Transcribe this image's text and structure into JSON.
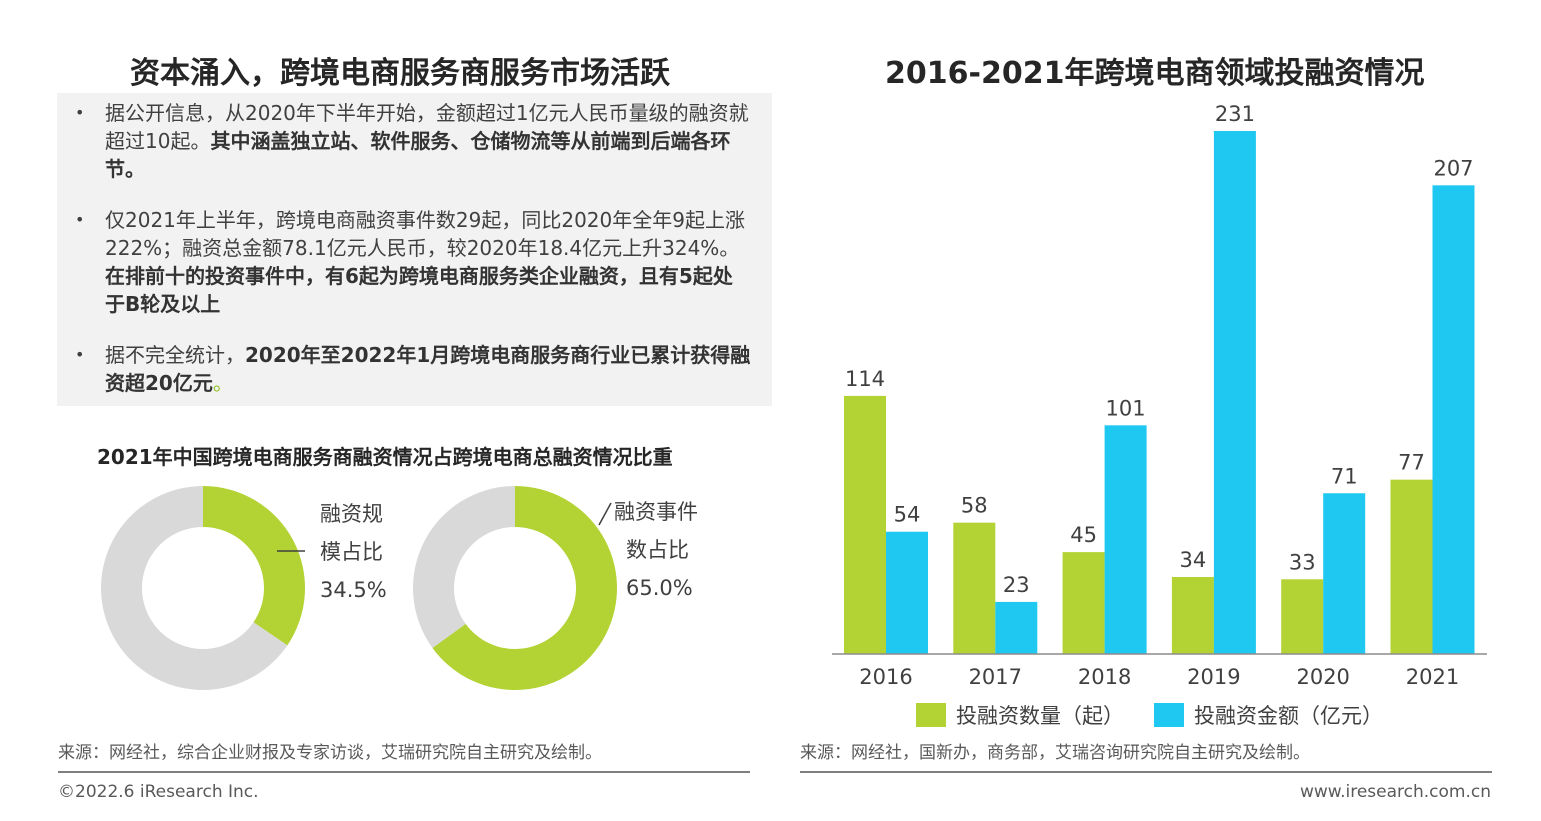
{
  "left_title": "资本涌入，跨境电商服务商服务市场活跃",
  "right_title": "2016-2021年跨境电商领域投融资情况",
  "bullets": [
    {
      "normal": "据公开信息，从2020年下半年开始，金额超过1亿元人民币量级的融资就超过10起。",
      "bold": "其中涵盖独立站、软件服务、仓储物流等从前端到后端各环节。",
      "tail": ""
    },
    {
      "normal": "仅2021年上半年，跨境电商融资事件数29起，同比2020年全年9起上涨222%；融资总金额78.1亿元人民币，较2020年18.4亿元上升324%。",
      "bold": "在排前十的投资事件中，有6起为跨境电商服务类企业融资，且有5起处于B轮及以上",
      "tail": ""
    },
    {
      "normal": "据不完全统计，",
      "bold": "2020年至2022年1月跨境电商服务商行业已累计获得融资超20亿元",
      "tail": "。"
    }
  ],
  "colors": {
    "green": "#b3d233",
    "blue": "#1fc8f0",
    "gray": "#d9d9d9"
  },
  "chart_data": [
    {
      "type": "pie",
      "subtype": "donut",
      "title": "2021年中国跨境电商服务商融资情况占跨境电商总融资情况比重",
      "donuts": [
        {
          "label_lines": [
            "融资规",
            "模占比"
          ],
          "value_label": "34.5%",
          "value": 34.5
        },
        {
          "label_lines": [
            "融资事件",
            "数占比"
          ],
          "value_label": "65.0%",
          "value": 65.0
        }
      ]
    },
    {
      "type": "bar",
      "title": "2016-2021年跨境电商领域投融资情况",
      "categories": [
        "2016",
        "2017",
        "2018",
        "2019",
        "2020",
        "2021"
      ],
      "series": [
        {
          "name": "投融资数量（起）",
          "values": [
            114,
            58,
            45,
            34,
            33,
            77
          ]
        },
        {
          "name": "投融资金额（亿元）",
          "values": [
            54,
            23,
            101,
            231,
            71,
            207
          ]
        }
      ],
      "legend": "bottom",
      "grid": false
    }
  ],
  "left_source": "来源：网经社，综合企业财报及专家访谈，艾瑞研究院自主研究及绘制。",
  "right_source": "来源：网经社，国新办，商务部，艾瑞咨询研究院自主研究及绘制。",
  "footer_left": "©2022.6 iResearch Inc.",
  "footer_right": "www.iresearch.com.cn"
}
